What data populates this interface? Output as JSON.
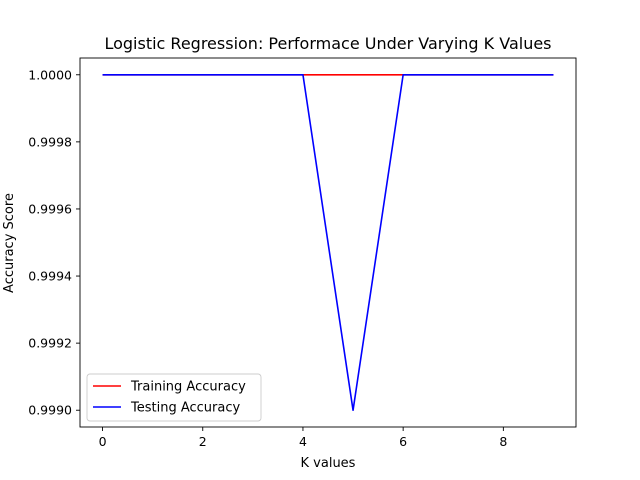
{
  "chart_data": {
    "type": "line",
    "title": "Logistic Regression: Performace Under Varying K Values",
    "xlabel": "K values",
    "ylabel": "Accuracy Score",
    "x": [
      0,
      1,
      2,
      3,
      4,
      5,
      6,
      7,
      8,
      9
    ],
    "series": [
      {
        "name": "Training Accuracy",
        "color": "#ff0000",
        "values": [
          1.0,
          1.0,
          1.0,
          1.0,
          1.0,
          1.0,
          1.0,
          1.0,
          1.0,
          1.0
        ]
      },
      {
        "name": "Testing Accuracy",
        "color": "#0000ff",
        "values": [
          1.0,
          1.0,
          1.0,
          1.0,
          1.0,
          0.999,
          1.0,
          1.0,
          1.0,
          1.0
        ]
      }
    ],
    "xlim": [
      -0.45,
      9.45
    ],
    "ylim": [
      0.99895,
      1.00005
    ],
    "xticks": [
      0,
      2,
      4,
      6,
      8
    ],
    "xtick_labels": [
      "0",
      "2",
      "4",
      "6",
      "8"
    ],
    "yticks": [
      0.999,
      0.9992,
      0.9994,
      0.9996,
      0.9998,
      1.0
    ],
    "ytick_labels": [
      "0.9990",
      "0.9992",
      "0.9994",
      "0.9996",
      "0.9998",
      "1.0000"
    ],
    "grid": false,
    "legend_position": "lower-left"
  }
}
